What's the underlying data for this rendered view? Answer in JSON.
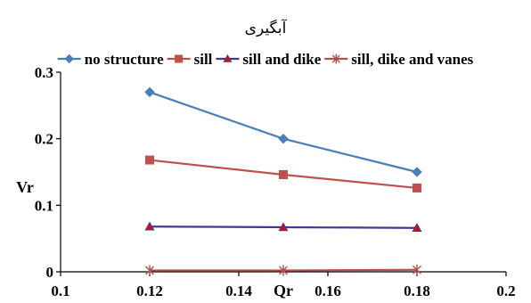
{
  "chart_data": {
    "type": "line",
    "title": "آبگیری",
    "xlabel": "Qr",
    "ylabel": "Vr",
    "xlim": [
      0.1,
      0.2
    ],
    "ylim": [
      0,
      0.3
    ],
    "xticks": [
      "0.1",
      "0.12",
      "0.14",
      "0.16",
      "0.18",
      "0.2"
    ],
    "yticks": [
      "0",
      "0.1",
      "0.2",
      "0.3"
    ],
    "grid": false,
    "legend_position": "top",
    "series": [
      {
        "name": "no structure",
        "color": "#4a7ebb",
        "marker": "diamond",
        "x": [
          0.12,
          0.15,
          0.18
        ],
        "y": [
          0.27,
          0.2,
          0.15
        ]
      },
      {
        "name": "sill",
        "color": "#c0504d",
        "marker": "square",
        "x": [
          0.12,
          0.15,
          0.18
        ],
        "y": [
          0.168,
          0.146,
          0.126
        ]
      },
      {
        "name": "sill and dike",
        "color": "#c0112e",
        "line_color": "#403b8c",
        "marker": "triangle",
        "x": [
          0.12,
          0.15,
          0.18
        ],
        "y": [
          0.068,
          0.067,
          0.066
        ]
      },
      {
        "name": "sill, dike and vanes",
        "color": "#b0504d",
        "marker": "star",
        "x": [
          0.12,
          0.15,
          0.18
        ],
        "y": [
          0.002,
          0.002,
          0.003
        ]
      }
    ]
  }
}
